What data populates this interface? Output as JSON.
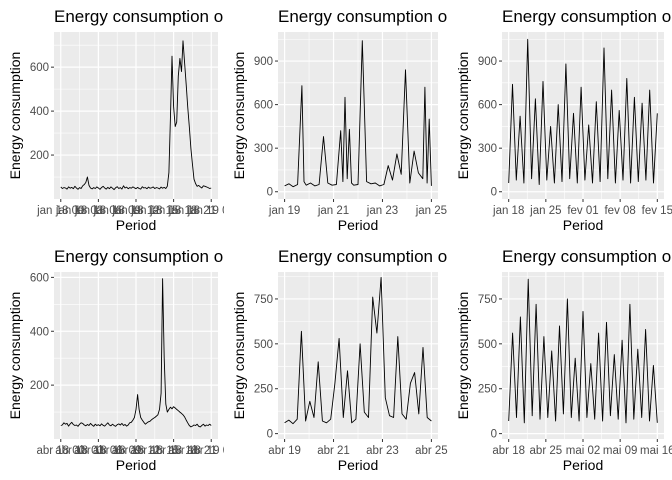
{
  "chart_data": [
    {
      "type": "line",
      "title": "Energy consumption o",
      "xlabel": "Period",
      "ylabel": "Energy consumption",
      "x_ticks": [
        "jan 18 00",
        "jan 18 06",
        "jan 18 12",
        "jan 18 18",
        "jan 19 00"
      ],
      "x_tick_labels_overlapped": [
        "jan 18 00",
        "jan 18 03",
        "jan 18 06",
        "jan 18 09",
        "jan 18 12",
        "jan 18 15",
        "jan 18 18",
        "jan 18 21",
        "jan 19 00"
      ],
      "y_ticks": [
        200,
        400,
        600
      ],
      "ylim": [
        0,
        760
      ],
      "grid": true,
      "x": [
        0,
        1,
        2,
        3,
        4,
        5,
        6,
        7,
        8,
        9,
        10,
        11,
        12,
        13,
        14,
        15,
        16,
        17,
        18,
        19,
        20,
        21,
        22,
        23,
        24,
        25,
        26,
        27,
        28,
        29,
        30,
        31,
        32,
        33,
        34,
        35,
        36,
        37,
        38,
        39,
        40,
        41,
        42,
        43,
        44,
        45,
        46,
        47,
        48,
        49,
        50,
        51,
        52,
        53,
        54,
        55,
        56,
        57,
        58,
        59,
        60,
        61,
        62,
        63,
        64,
        65,
        66,
        67,
        68,
        69,
        70,
        71,
        72,
        73,
        74,
        75,
        76,
        77,
        78,
        79,
        80,
        81,
        82,
        83,
        84,
        85,
        86,
        87,
        88,
        89,
        90,
        91,
        92,
        93,
        94,
        95,
        96
      ],
      "values": [
        55,
        48,
        52,
        50,
        45,
        55,
        49,
        53,
        47,
        58,
        50,
        44,
        52,
        48,
        60,
        66,
        75,
        100,
        62,
        50,
        46,
        52,
        48,
        55,
        50,
        44,
        52,
        58,
        50,
        45,
        53,
        47,
        55,
        49,
        43,
        51,
        56,
        48,
        52,
        45,
        60,
        50,
        54,
        47,
        52,
        49,
        55,
        51,
        47,
        53,
        48,
        45,
        56,
        50,
        52,
        47,
        54,
        49,
        51,
        55,
        48,
        52,
        50,
        46,
        54,
        49,
        53,
        48,
        58,
        120,
        380,
        650,
        420,
        330,
        350,
        560,
        640,
        580,
        720,
        620,
        520,
        420,
        330,
        230,
        160,
        90,
        70,
        58,
        62,
        55,
        50,
        60,
        58,
        55,
        52,
        48,
        50
      ]
    },
    {
      "type": "line",
      "title": "Energy consumption o",
      "xlabel": "Period",
      "ylabel": "Energy consumption",
      "x_ticks": [
        "jan 19",
        "jan 21",
        "jan 23",
        "jan 25"
      ],
      "y_ticks": [
        0,
        300,
        600,
        900
      ],
      "ylim": [
        -50,
        1100
      ],
      "grid": true,
      "x": [
        18.2,
        18.4,
        18.6,
        18.8,
        19.0,
        19.1,
        19.2,
        19.4,
        19.6,
        19.8,
        20.0,
        20.2,
        20.4,
        20.6,
        20.8,
        20.9,
        21.0,
        21.1,
        21.2,
        21.3,
        21.4,
        21.6,
        21.8,
        22.0,
        22.2,
        22.4,
        22.6,
        22.8,
        23.0,
        23.2,
        23.4,
        23.6,
        23.8,
        24.0,
        24.2,
        24.4,
        24.6,
        24.7,
        24.8,
        24.9,
        25.0
      ],
      "values": [
        40,
        55,
        35,
        50,
        730,
        70,
        45,
        60,
        40,
        50,
        380,
        60,
        45,
        50,
        420,
        70,
        650,
        90,
        430,
        60,
        45,
        50,
        1040,
        70,
        55,
        60,
        40,
        50,
        180,
        80,
        260,
        120,
        840,
        60,
        280,
        130,
        90,
        720,
        60,
        500,
        40
      ]
    },
    {
      "type": "line",
      "title": "Energy consumption o",
      "xlabel": "Period",
      "ylabel": "Energy consumption",
      "x_ticks": [
        "jan 18",
        "jan 25",
        "fev 01",
        "fev 08",
        "fev 15"
      ],
      "y_ticks": [
        0,
        300,
        600,
        900
      ],
      "ylim": [
        -50,
        1100
      ],
      "grid": true,
      "x": [
        0,
        0.8,
        1.6,
        2.4,
        3.2,
        4.0,
        4.8,
        5.6,
        6.4,
        7.2,
        8.0,
        8.8,
        9.6,
        10.4,
        11.2,
        12.0,
        12.8,
        13.6,
        14.4,
        15.2,
        16.0,
        16.8,
        17.6,
        18.4,
        19.2,
        20.0,
        20.8,
        21.6,
        22.4,
        23.2,
        24.0,
        24.8,
        25.6,
        26.4,
        27.2,
        28.0,
        28.8,
        29.6,
        30.4,
        31.2
      ],
      "values": [
        60,
        740,
        80,
        520,
        60,
        1050,
        90,
        640,
        50,
        760,
        80,
        450,
        60,
        600,
        70,
        880,
        90,
        540,
        60,
        720,
        80,
        460,
        60,
        620,
        70,
        990,
        90,
        700,
        60,
        560,
        80,
        780,
        60,
        650,
        70,
        610,
        80,
        700,
        60,
        540
      ]
    },
    {
      "type": "line",
      "title": "Energy consumption o",
      "xlabel": "Period",
      "ylabel": "Energy consumption",
      "x_ticks": [
        "abr 18 00",
        "abr 18 06",
        "abr 18 12",
        "abr 18 18",
        "abr 19 00"
      ],
      "x_tick_labels_overlapped": [
        "abr 18 00",
        "abr 18 03",
        "abr 18 06",
        "abr 18 09",
        "abr 18 12",
        "abr 18 15",
        "abr 18 18",
        "abr 18 21",
        "abr 19 00"
      ],
      "y_ticks": [
        200,
        400,
        600
      ],
      "ylim": [
        0,
        620
      ],
      "grid": true,
      "x": [
        0,
        1,
        2,
        3,
        4,
        5,
        6,
        7,
        8,
        9,
        10,
        11,
        12,
        13,
        14,
        15,
        16,
        17,
        18,
        19,
        20,
        21,
        22,
        23,
        24,
        25,
        26,
        27,
        28,
        29,
        30,
        31,
        32,
        33,
        34,
        35,
        36,
        37,
        38,
        39,
        40,
        41,
        42,
        43,
        44,
        45,
        46,
        47,
        48,
        49,
        50,
        51,
        52,
        53,
        54,
        55,
        56,
        57,
        58,
        59,
        60,
        61,
        62,
        63,
        64,
        65,
        66,
        67,
        68,
        69,
        70,
        71,
        72,
        73,
        74,
        75,
        76,
        77,
        78,
        79,
        80,
        81,
        82,
        83,
        84,
        85,
        86,
        87,
        88,
        89,
        90,
        91,
        92,
        93,
        94,
        95,
        96
      ],
      "values": [
        50,
        52,
        60,
        55,
        58,
        48,
        56,
        62,
        54,
        50,
        52,
        47,
        55,
        60,
        58,
        52,
        49,
        54,
        50,
        58,
        52,
        47,
        55,
        50,
        53,
        49,
        56,
        51,
        48,
        54,
        60,
        52,
        49,
        55,
        50,
        47,
        53,
        56,
        52,
        58,
        50,
        54,
        48,
        52,
        60,
        62,
        70,
        80,
        110,
        165,
        110,
        80,
        70,
        62,
        55,
        60,
        64,
        66,
        72,
        76,
        80,
        85,
        90,
        110,
        170,
        595,
        300,
        130,
        100,
        110,
        118,
        112,
        120,
        115,
        110,
        105,
        100,
        95,
        90,
        82,
        70,
        60,
        50,
        45,
        48,
        52,
        50,
        55,
        47,
        45,
        50,
        55,
        48,
        52,
        50,
        55,
        50
      ]
    },
    {
      "type": "line",
      "title": "Energy consumption o",
      "xlabel": "Period",
      "ylabel": "Energy consumption",
      "x_ticks": [
        "abr 19",
        "abr 21",
        "abr 23",
        "abr 25"
      ],
      "y_ticks": [
        0,
        250,
        500,
        750
      ],
      "ylim": [
        -30,
        900
      ],
      "grid": true,
      "x": [
        18.0,
        18.2,
        18.4,
        18.6,
        18.8,
        19.0,
        19.2,
        19.4,
        19.6,
        19.8,
        20.0,
        20.2,
        20.4,
        20.6,
        20.8,
        21.0,
        21.2,
        21.4,
        21.6,
        21.8,
        22.0,
        22.2,
        22.4,
        22.6,
        22.8,
        23.0,
        23.2,
        23.4,
        23.6,
        23.8,
        24.0,
        24.2,
        24.4,
        24.6,
        24.8,
        25.0
      ],
      "values": [
        60,
        75,
        55,
        80,
        570,
        70,
        180,
        90,
        400,
        70,
        60,
        80,
        280,
        530,
        90,
        350,
        60,
        80,
        500,
        120,
        90,
        760,
        560,
        870,
        200,
        100,
        90,
        540,
        110,
        80,
        280,
        340,
        110,
        480,
        90,
        70
      ]
    },
    {
      "type": "line",
      "title": "Energy consumption o",
      "xlabel": "Period",
      "ylabel": "Energy consumption",
      "x_ticks": [
        "abr 18",
        "abr 25",
        "mai 02",
        "mai 09",
        "mai 16"
      ],
      "y_ticks": [
        0,
        250,
        500,
        750
      ],
      "ylim": [
        -30,
        900
      ],
      "grid": true,
      "x": [
        0,
        0.8,
        1.6,
        2.4,
        3.2,
        4.0,
        4.8,
        5.6,
        6.4,
        7.2,
        8.0,
        8.8,
        9.6,
        10.4,
        11.2,
        12.0,
        12.8,
        13.6,
        14.4,
        15.2,
        16.0,
        16.8,
        17.6,
        18.4,
        19.2,
        20.0,
        20.8,
        21.6,
        22.4,
        23.2,
        24.0,
        24.8,
        25.6,
        26.4,
        27.2,
        28.0,
        28.8,
        29.6,
        30.4
      ],
      "values": [
        70,
        560,
        90,
        650,
        60,
        860,
        100,
        720,
        80,
        540,
        90,
        460,
        70,
        600,
        110,
        750,
        90,
        420,
        70,
        680,
        90,
        390,
        80,
        560,
        70,
        620,
        100,
        440,
        80,
        520,
        60,
        720,
        80,
        470,
        90,
        580,
        70,
        380,
        60
      ]
    }
  ]
}
